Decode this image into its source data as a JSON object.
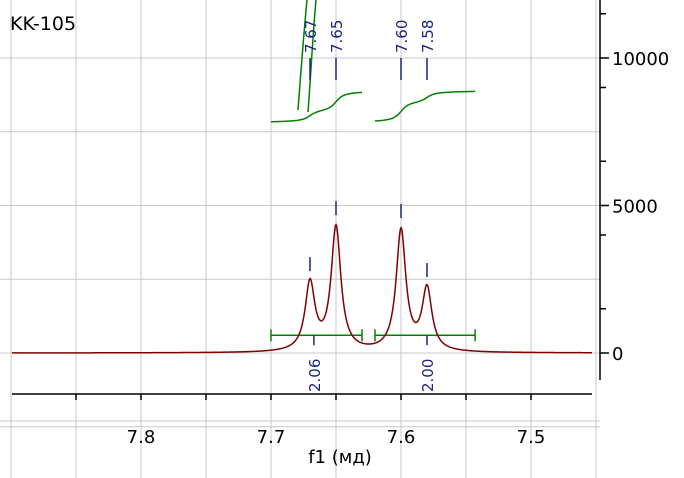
{
  "chart_data": {
    "type": "line",
    "title": "KK-105",
    "xlabel": "f1 (мд)",
    "ylabel": "",
    "xlim": [
      7.96,
      7.45
    ],
    "ylim": [
      -1800,
      12500
    ],
    "x_ticks": [
      {
        "value": 7.8,
        "label": "7.8"
      },
      {
        "value": 7.7,
        "label": "7.7"
      },
      {
        "value": 7.6,
        "label": "7.6"
      },
      {
        "value": 7.5,
        "label": "7.5"
      }
    ],
    "y_ticks": [
      {
        "value": 0,
        "label": "0"
      },
      {
        "value": 5000,
        "label": "5000"
      },
      {
        "value": 10000,
        "label": "10000"
      }
    ],
    "grid": true,
    "colors": {
      "spectrum": "#800000",
      "integral": "#008000",
      "peak_label": "#1a237e",
      "grid": "#c8c8c8"
    },
    "peaks": [
      {
        "ppm": 7.67,
        "label": "7.67",
        "intensity": 2300,
        "width": 0.0045
      },
      {
        "ppm": 7.65,
        "label": "7.65",
        "intensity": 4200,
        "width": 0.0045
      },
      {
        "ppm": 7.6,
        "label": "7.60",
        "intensity": 4100,
        "width": 0.0045
      },
      {
        "ppm": 7.58,
        "label": "7.58",
        "intensity": 2100,
        "width": 0.0045
      }
    ],
    "baseline": 0,
    "integrals": [
      {
        "from": 7.7,
        "to": 7.63,
        "value": 2.06,
        "label": "2.06",
        "label_ppm": 7.667,
        "curve_start": 7800,
        "curve_end": 8900
      },
      {
        "from": 7.62,
        "to": 7.543,
        "value": 2.0,
        "label": "2.00",
        "label_ppm": 7.58,
        "curve_start": 7800,
        "curve_end": 8900
      }
    ],
    "integral_bar_level": 600
  }
}
